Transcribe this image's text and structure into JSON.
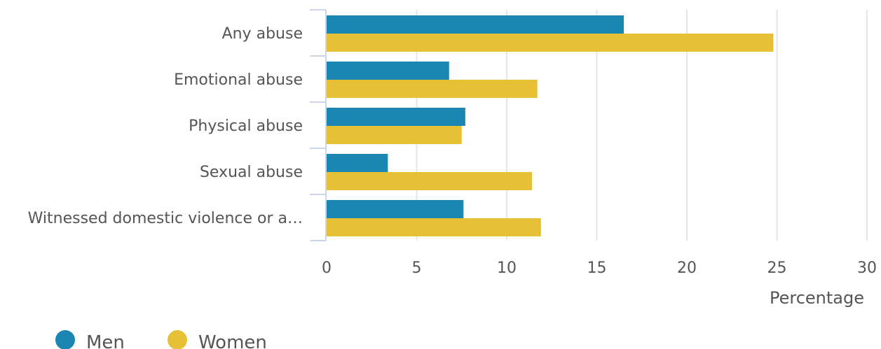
{
  "chart_data": {
    "type": "bar",
    "orientation": "horizontal",
    "categories": [
      "Any abuse",
      "Emotional abuse",
      "Physical abuse",
      "Sexual abuse",
      "Witnessed domestic violence or a…"
    ],
    "series": [
      {
        "name": "Men",
        "color": "#1b86b1",
        "values": [
          16.5,
          6.8,
          7.7,
          3.4,
          7.6
        ]
      },
      {
        "name": "Women",
        "color": "#e6c136",
        "values": [
          24.8,
          11.7,
          7.5,
          11.4,
          11.9
        ]
      }
    ],
    "xlabel": "Percentage",
    "xlim": [
      0,
      30
    ],
    "xticks": [
      "0",
      "5",
      "10",
      "15",
      "20",
      "25",
      "30"
    ],
    "grid": "vertical",
    "legend": "bottom-left"
  }
}
